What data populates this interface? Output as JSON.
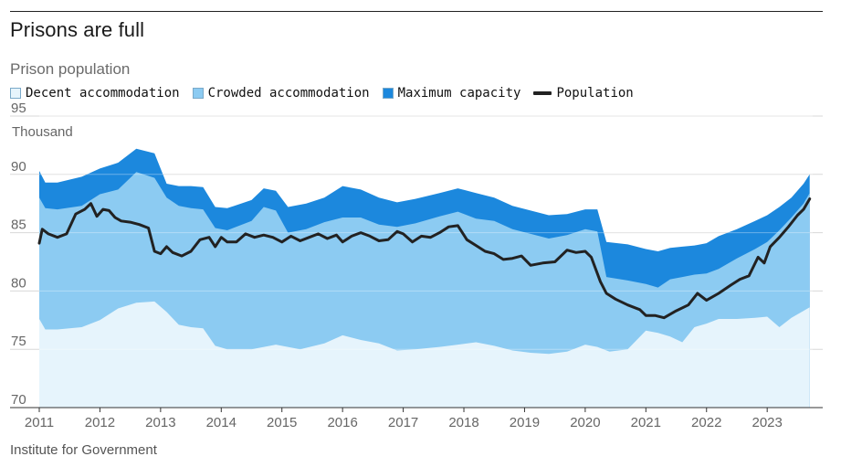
{
  "header": {
    "title": "Prisons are full",
    "subtitle": "Prison population",
    "source": "Institute for Government"
  },
  "chart_data": {
    "type": "area",
    "title": "Prisons are full",
    "subtitle": "Prison population",
    "ylabel": "Thousand",
    "ylim": [
      70,
      95
    ],
    "yticks": [
      70,
      75,
      80,
      85,
      90,
      95
    ],
    "xlim": [
      2011,
      2023.75
    ],
    "xticks": [
      "2011",
      "2012",
      "2013",
      "2014",
      "2015",
      "2016",
      "2017",
      "2018",
      "2019",
      "2020",
      "2021",
      "2022",
      "2023"
    ],
    "grid": true,
    "legend_position": "top-left",
    "colors": {
      "decent": "#e6f4fc",
      "crowded": "#8ccbf2",
      "maximum": "#1c88dd",
      "population": "#222222",
      "grid": "#d8d8d8"
    },
    "legend": [
      {
        "key": "decent",
        "label": "Decent accommodation",
        "kind": "swatch"
      },
      {
        "key": "crowded",
        "label": "Crowded accommodation",
        "kind": "swatch"
      },
      {
        "key": "maximum",
        "label": "Maximum capacity",
        "kind": "swatch"
      },
      {
        "key": "population",
        "label": "Population",
        "kind": "line"
      }
    ],
    "series": [
      {
        "key": "decent",
        "name": "Decent accommodation",
        "x": [
          2011,
          2011.1,
          2011.3,
          2011.7,
          2012,
          2012.3,
          2012.6,
          2012.9,
          2013.1,
          2013.3,
          2013.5,
          2013.7,
          2013.9,
          2014.1,
          2014.5,
          2014.9,
          2015.3,
          2015.7,
          2016.0,
          2016.3,
          2016.6,
          2016.9,
          2017.2,
          2017.6,
          2017.9,
          2018.2,
          2018.5,
          2018.8,
          2019.1,
          2019.4,
          2019.7,
          2020.0,
          2020.2,
          2020.4,
          2020.7,
          2021.0,
          2021.2,
          2021.4,
          2021.6,
          2021.8,
          2022.0,
          2022.2,
          2022.5,
          2022.8,
          2023.0,
          2023.2,
          2023.4,
          2023.6,
          2023.7
        ],
        "values": [
          77.6,
          76.7,
          76.7,
          76.9,
          77.5,
          78.5,
          79.0,
          79.1,
          78.2,
          77.1,
          76.9,
          76.8,
          75.3,
          75.0,
          75.0,
          75.4,
          75.0,
          75.5,
          76.2,
          75.8,
          75.5,
          74.9,
          75.0,
          75.2,
          75.4,
          75.6,
          75.3,
          74.9,
          74.7,
          74.6,
          74.8,
          75.4,
          75.2,
          74.8,
          75.0,
          76.6,
          76.4,
          76.1,
          75.6,
          76.9,
          77.2,
          77.6,
          77.6,
          77.7,
          77.8,
          76.9,
          77.7,
          78.3,
          78.6
        ]
      },
      {
        "key": "crowded",
        "name": "Crowded accommodation",
        "x": [
          2011,
          2011.1,
          2011.3,
          2011.7,
          2012,
          2012.3,
          2012.6,
          2012.9,
          2013.1,
          2013.3,
          2013.5,
          2013.7,
          2013.9,
          2014.1,
          2014.5,
          2014.7,
          2014.9,
          2015.1,
          2015.4,
          2015.7,
          2016.0,
          2016.3,
          2016.6,
          2016.9,
          2017.2,
          2017.6,
          2017.9,
          2018.2,
          2018.5,
          2018.8,
          2019.1,
          2019.4,
          2019.7,
          2020.0,
          2020.2,
          2020.35,
          2020.7,
          2021.0,
          2021.2,
          2021.4,
          2021.6,
          2021.8,
          2022.0,
          2022.2,
          2022.5,
          2022.8,
          2023.0,
          2023.2,
          2023.4,
          2023.6,
          2023.7
        ],
        "values": [
          88.0,
          87.1,
          87.0,
          87.3,
          88.3,
          88.7,
          90.2,
          89.7,
          88.0,
          87.3,
          87.1,
          87.0,
          85.4,
          85.2,
          86.0,
          87.2,
          86.9,
          85.0,
          85.3,
          85.9,
          86.3,
          86.3,
          85.7,
          85.5,
          85.8,
          86.4,
          86.8,
          86.2,
          86.0,
          85.3,
          84.9,
          84.5,
          84.8,
          85.3,
          85.1,
          81.2,
          80.9,
          80.6,
          80.3,
          81.0,
          81.2,
          81.4,
          81.5,
          81.9,
          82.8,
          83.6,
          84.2,
          85.2,
          86.3,
          87.5,
          88.4
        ]
      },
      {
        "key": "maximum",
        "name": "Maximum capacity",
        "x": [
          2011,
          2011.1,
          2011.3,
          2011.7,
          2012,
          2012.3,
          2012.6,
          2012.9,
          2013.1,
          2013.3,
          2013.5,
          2013.7,
          2013.9,
          2014.1,
          2014.5,
          2014.7,
          2014.9,
          2015.1,
          2015.4,
          2015.7,
          2016.0,
          2016.3,
          2016.6,
          2016.9,
          2017.2,
          2017.6,
          2017.9,
          2018.2,
          2018.5,
          2018.8,
          2019.1,
          2019.4,
          2019.7,
          2020.0,
          2020.2,
          2020.35,
          2020.7,
          2021.0,
          2021.2,
          2021.4,
          2021.6,
          2021.8,
          2022.0,
          2022.2,
          2022.5,
          2022.8,
          2023.0,
          2023.2,
          2023.4,
          2023.6,
          2023.7
        ],
        "values": [
          90.3,
          89.3,
          89.3,
          89.8,
          90.5,
          91.0,
          92.2,
          91.8,
          89.2,
          89.0,
          89.0,
          88.9,
          87.2,
          87.1,
          87.8,
          88.8,
          88.6,
          87.2,
          87.5,
          88.0,
          89.0,
          88.7,
          88.0,
          87.6,
          87.9,
          88.4,
          88.8,
          88.4,
          88.0,
          87.3,
          86.9,
          86.5,
          86.6,
          87.0,
          87.0,
          84.2,
          84.0,
          83.6,
          83.4,
          83.7,
          83.8,
          83.9,
          84.1,
          84.7,
          85.3,
          86.0,
          86.5,
          87.2,
          88.0,
          89.2,
          90.0
        ]
      },
      {
        "key": "population",
        "name": "Population",
        "x": [
          2011,
          2011.05,
          2011.15,
          2011.3,
          2011.45,
          2011.6,
          2011.75,
          2011.85,
          2011.95,
          2012.05,
          2012.15,
          2012.25,
          2012.35,
          2012.5,
          2012.65,
          2012.8,
          2012.9,
          2013.0,
          2013.1,
          2013.2,
          2013.35,
          2013.5,
          2013.65,
          2013.8,
          2013.9,
          2014.0,
          2014.1,
          2014.25,
          2014.4,
          2014.55,
          2014.7,
          2014.85,
          2015.0,
          2015.15,
          2015.3,
          2015.45,
          2015.6,
          2015.75,
          2015.9,
          2016.0,
          2016.15,
          2016.3,
          2016.45,
          2016.6,
          2016.75,
          2016.9,
          2017.0,
          2017.15,
          2017.3,
          2017.45,
          2017.6,
          2017.75,
          2017.9,
          2018.05,
          2018.2,
          2018.35,
          2018.5,
          2018.65,
          2018.8,
          2018.95,
          2019.1,
          2019.3,
          2019.5,
          2019.7,
          2019.85,
          2020.0,
          2020.1,
          2020.25,
          2020.35,
          2020.5,
          2020.7,
          2020.9,
          2021.0,
          2021.15,
          2021.3,
          2021.5,
          2021.7,
          2021.85,
          2022.0,
          2022.2,
          2022.4,
          2022.55,
          2022.7,
          2022.85,
          2022.95,
          2023.05,
          2023.2,
          2023.35,
          2023.5,
          2023.6,
          2023.7
        ],
        "values": [
          84.1,
          85.3,
          84.9,
          84.6,
          84.9,
          86.6,
          87.0,
          87.5,
          86.4,
          87.0,
          86.9,
          86.3,
          86.0,
          85.9,
          85.7,
          85.4,
          83.4,
          83.2,
          83.8,
          83.3,
          83.0,
          83.4,
          84.4,
          84.6,
          83.8,
          84.6,
          84.2,
          84.2,
          84.9,
          84.6,
          84.8,
          84.6,
          84.2,
          84.7,
          84.3,
          84.6,
          84.9,
          84.5,
          84.8,
          84.2,
          84.7,
          85.0,
          84.7,
          84.3,
          84.4,
          85.1,
          84.9,
          84.2,
          84.7,
          84.6,
          85.0,
          85.5,
          85.6,
          84.4,
          83.9,
          83.4,
          83.2,
          82.7,
          82.8,
          83.0,
          82.2,
          82.4,
          82.5,
          83.5,
          83.3,
          83.4,
          82.9,
          80.8,
          79.8,
          79.3,
          78.8,
          78.4,
          77.9,
          77.9,
          77.7,
          78.3,
          78.8,
          79.8,
          79.2,
          79.8,
          80.5,
          81.0,
          81.3,
          82.9,
          82.4,
          83.8,
          84.6,
          85.5,
          86.5,
          87.0,
          87.9
        ]
      }
    ]
  }
}
